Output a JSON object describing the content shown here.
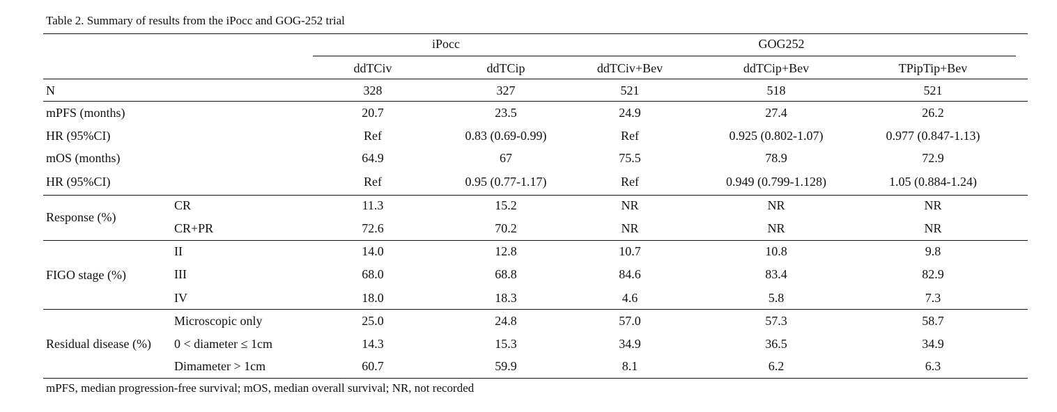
{
  "caption": "Table 2. Summary of results from the iPocc and GOG-252 trial",
  "groups": [
    "iPocc",
    "GOG252"
  ],
  "columns": [
    "ddTCiv",
    "ddTCip",
    "ddTCiv+Bev",
    "ddTCip+Bev",
    "TPipTip+Bev"
  ],
  "rows": [
    {
      "section": "",
      "label": "N",
      "values": [
        "328",
        "327",
        "521",
        "518",
        "521"
      ]
    },
    {
      "section": "",
      "label": "mPFS (months)",
      "values": [
        "20.7",
        "23.5",
        "24.9",
        "27.4",
        "26.2"
      ]
    },
    {
      "section": "",
      "label": "HR (95%CI)",
      "values": [
        "Ref",
        "0.83 (0.69-0.99)",
        "Ref",
        "0.925 (0.802-1.07)",
        "0.977 (0.847-1.13)"
      ]
    },
    {
      "section": "",
      "label": "mOS (months)",
      "values": [
        "64.9",
        "67",
        "75.5",
        "78.9",
        "72.9"
      ]
    },
    {
      "section": "",
      "label": "HR (95%CI)",
      "values": [
        "Ref",
        "0.95 (0.77-1.17)",
        "Ref",
        "0.949 (0.799-1.128)",
        "1.05 (0.884-1.24)"
      ]
    },
    {
      "section": "Response (%)",
      "label": "CR",
      "values": [
        "11.3",
        "15.2",
        "NR",
        "NR",
        "NR"
      ]
    },
    {
      "section": "Response (%)",
      "label": "CR+PR",
      "values": [
        "72.6",
        "70.2",
        "NR",
        "NR",
        "NR"
      ]
    },
    {
      "section": "FIGO stage (%)",
      "label": "II",
      "values": [
        "14.0",
        "12.8",
        "10.7",
        "10.8",
        "9.8"
      ]
    },
    {
      "section": "FIGO stage (%)",
      "label": "III",
      "values": [
        "68.0",
        "68.8",
        "84.6",
        "83.4",
        "82.9"
      ]
    },
    {
      "section": "FIGO stage (%)",
      "label": "IV",
      "values": [
        "18.0",
        "18.3",
        "4.6",
        "5.8",
        "7.3"
      ]
    },
    {
      "section": "Residual disease (%)",
      "label": "Microscopic only",
      "values": [
        "25.0",
        "24.8",
        "57.0",
        "57.3",
        "58.7"
      ]
    },
    {
      "section": "Residual disease (%)",
      "label": "0 < diameter ≤ 1cm",
      "values": [
        "14.3",
        "15.3",
        "34.9",
        "36.5",
        "34.9"
      ]
    },
    {
      "section": "Residual disease (%)",
      "label": "Dimameter > 1cm",
      "values": [
        "60.7",
        "59.9",
        "8.1",
        "6.2",
        "6.3"
      ]
    }
  ],
  "footnote": "mPFS, median progression-free survival; mOS, median overall survival; NR, not recorded"
}
